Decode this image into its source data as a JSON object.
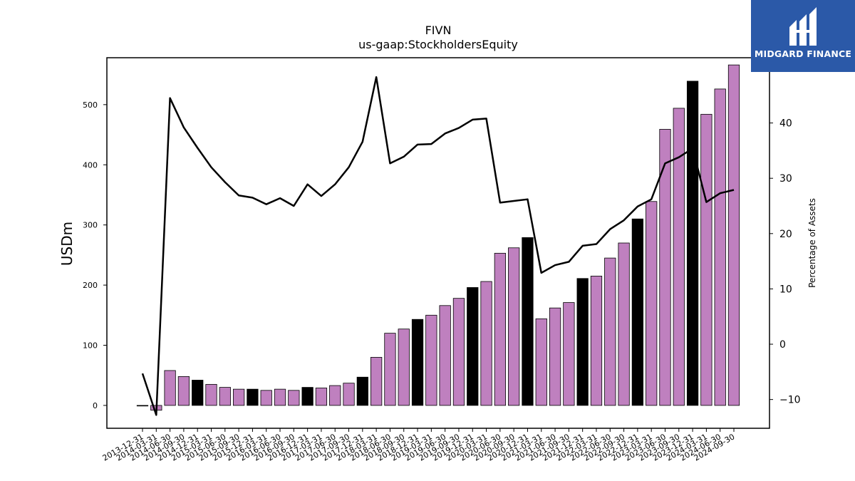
{
  "brand": {
    "name": "MIDGARD FINANCE",
    "color": "#2b59a8"
  },
  "colors": {
    "bar": "#bf80bf",
    "bar_highlight": "#000000",
    "line": "#000000"
  },
  "chart_data": {
    "type": "bar",
    "title": "FIVN",
    "subtitle": "us-gaap:StockholdersEquity",
    "ylabel": "USDm",
    "y2label": "Percentage of Assets",
    "ylim": [
      -38,
      578
    ],
    "y2lim": [
      -15.2,
      51.8
    ],
    "yticks": [
      0,
      100,
      200,
      300,
      400,
      500
    ],
    "y2ticks": [
      -10,
      0,
      10,
      20,
      30,
      40
    ],
    "categories": [
      "2013-12-31",
      "2014-03-31",
      "2014-06-30",
      "2014-09-30",
      "2014-12-31",
      "2015-03-31",
      "2015-06-30",
      "2015-09-30",
      "2015-12-31",
      "2016-03-31",
      "2016-06-30",
      "2016-09-30",
      "2016-12-31",
      "2017-03-31",
      "2017-06-30",
      "2017-09-30",
      "2017-12-31",
      "2018-03-31",
      "2018-06-30",
      "2018-09-30",
      "2018-12-31",
      "2019-03-31",
      "2019-06-30",
      "2019-09-30",
      "2019-12-31",
      "2020-03-31",
      "2020-06-30",
      "2020-09-30",
      "2020-12-31",
      "2021-03-31",
      "2021-06-30",
      "2021-09-30",
      "2021-12-31",
      "2022-03-31",
      "2022-06-30",
      "2022-09-30",
      "2022-12-31",
      "2023-03-31",
      "2023-06-30",
      "2023-09-30",
      "2023-12-31",
      "2024-03-31",
      "2024-06-30",
      "2024-09-30"
    ],
    "series": [
      {
        "kind": "bar",
        "values": [
          -1,
          -8,
          58,
          48,
          42,
          35,
          30,
          27,
          27,
          25,
          27,
          25,
          30,
          29,
          33,
          37,
          47,
          80,
          120,
          127,
          143,
          150,
          166,
          178,
          196,
          206,
          253,
          262,
          279,
          144,
          162,
          171,
          211,
          215,
          245,
          270,
          310,
          339,
          459,
          494,
          539,
          484,
          526,
          566
        ],
        "highlight_quarter": "12-31"
      },
      {
        "kind": "line",
        "axis": "right",
        "values": [
          -5.3,
          -12.8,
          44.5,
          39.2,
          35.5,
          32.0,
          29.3,
          26.9,
          26.5,
          25.3,
          26.4,
          25.0,
          28.9,
          26.8,
          28.9,
          32.0,
          36.6,
          48.3,
          32.7,
          33.9,
          36.1,
          36.2,
          38.1,
          39.1,
          40.6,
          40.8,
          25.6,
          25.9,
          26.2,
          12.9,
          14.3,
          14.9,
          17.8,
          18.1,
          20.8,
          22.4,
          24.9,
          26.2,
          32.7,
          33.8,
          35.4,
          25.7,
          27.3,
          27.9
        ]
      }
    ],
    "grid": false,
    "legend": "none"
  }
}
